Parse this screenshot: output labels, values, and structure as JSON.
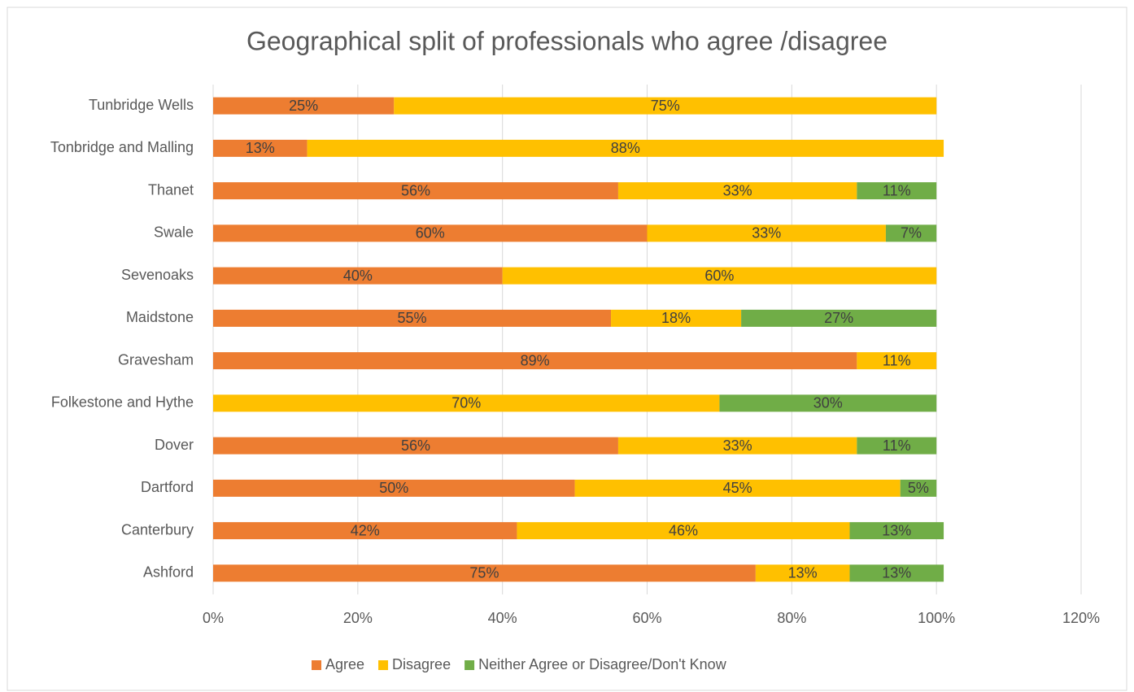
{
  "chart_data": {
    "type": "stacked_barh",
    "title": "Geographical split of professionals who agree /disagree",
    "categories": [
      "Tunbridge Wells",
      "Tonbridge and Malling",
      "Thanet",
      "Swale",
      "Sevenoaks",
      "Maidstone",
      "Gravesham",
      "Folkestone and Hythe",
      "Dover",
      "Dartford",
      "Canterbury",
      "Ashford"
    ],
    "series": [
      {
        "name": "Agree",
        "color": "#ed7d31",
        "values": [
          25,
          13,
          56,
          60,
          40,
          55,
          89,
          null,
          56,
          50,
          42,
          75
        ],
        "value_labels": [
          "25%",
          "13%",
          "56%",
          "60%",
          "40%",
          "55%",
          "89%",
          null,
          "56%",
          "50%",
          "42%",
          "75%"
        ]
      },
      {
        "name": "Disagree",
        "color": "#ffc000",
        "values": [
          75,
          88,
          33,
          33,
          60,
          18,
          11,
          70,
          33,
          45,
          46,
          13
        ],
        "value_labels": [
          "75%",
          "88%",
          "33%",
          "33%",
          "60%",
          "18%",
          "11%",
          "70%",
          "33%",
          "45%",
          "46%",
          "13%"
        ]
      },
      {
        "name": "Neither Agree or Disagree/Don't Know",
        "color": "#70ad47",
        "values": [
          null,
          null,
          11,
          7,
          null,
          27,
          null,
          30,
          11,
          5,
          13,
          13
        ],
        "value_labels": [
          null,
          null,
          "11%",
          "7%",
          null,
          "27%",
          null,
          "30%",
          "11%",
          "5%",
          "13%",
          "13%"
        ]
      }
    ],
    "xlim": [
      0,
      120
    ],
    "xticks": [
      {
        "value": 0,
        "label": "0%"
      },
      {
        "value": 20,
        "label": "20%"
      },
      {
        "value": 40,
        "label": "40%"
      },
      {
        "value": 60,
        "label": "60%"
      },
      {
        "value": 80,
        "label": "80%"
      },
      {
        "value": 100,
        "label": "100%"
      },
      {
        "value": 120,
        "label": "120%"
      }
    ],
    "grid": true,
    "legend": "bottom"
  }
}
